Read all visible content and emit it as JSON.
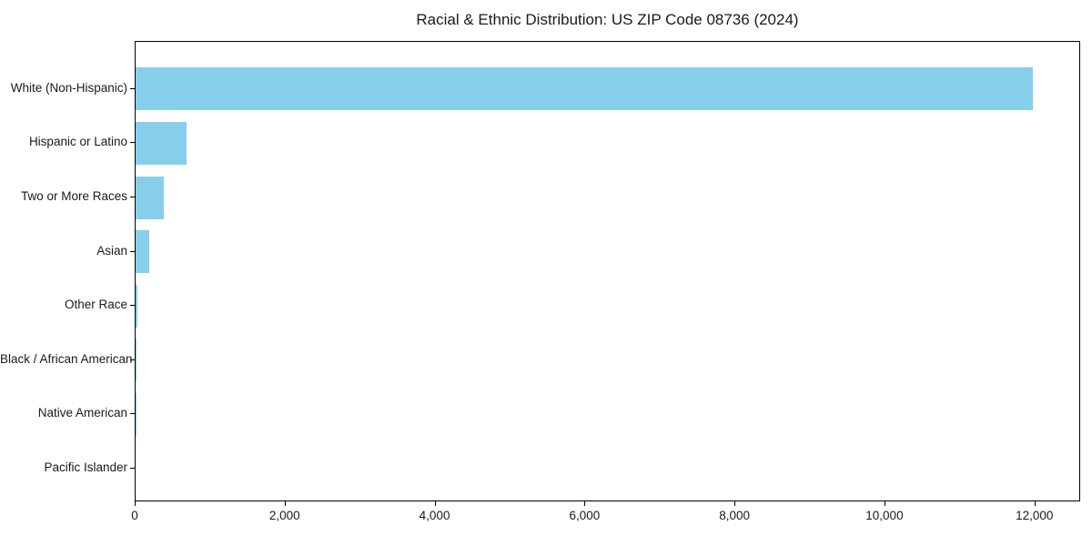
{
  "chart_data": {
    "type": "bar",
    "orientation": "horizontal",
    "title": "Racial & Ethnic Distribution: US ZIP Code 08736 (2024)",
    "categories": [
      "White (Non-Hispanic)",
      "Hispanic or Latino",
      "Two or More Races",
      "Asian",
      "Other Race",
      "Black / African American",
      "Native American",
      "Pacific Islander"
    ],
    "values": [
      11990,
      680,
      380,
      180,
      20,
      5,
      2,
      0
    ],
    "xlabel": "",
    "ylabel": "",
    "xlim": [
      0,
      12610
    ],
    "xtick_values": [
      0,
      2000,
      4000,
      6000,
      8000,
      10000,
      12000
    ],
    "xtick_labels": [
      "0",
      "2,000",
      "4,000",
      "6,000",
      "8,000",
      "10,000",
      "12,000"
    ],
    "bar_color": "#87CEEB",
    "spine_color": "#000000",
    "text_color": "#1a1a1a",
    "background": "#FFFFFF",
    "grid": false,
    "legend": null
  }
}
